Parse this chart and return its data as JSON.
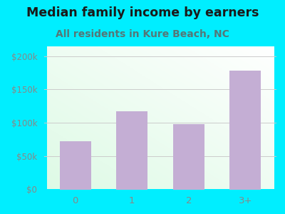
{
  "title": "Median family income by earners",
  "subtitle": "All residents in Kure Beach, NC",
  "categories": [
    "0",
    "1",
    "2",
    "3+"
  ],
  "values": [
    72000,
    117000,
    98000,
    178000
  ],
  "bar_color": "#c4aed4",
  "title_fontsize": 12.5,
  "subtitle_fontsize": 10,
  "ylabel_ticks": [
    0,
    50000,
    100000,
    150000,
    200000
  ],
  "ylabel_labels": [
    "$0",
    "$50k",
    "$100k",
    "$150k",
    "$200k"
  ],
  "ylim": [
    0,
    215000
  ],
  "background_outer": "#00eeff",
  "title_color": "#1a1a1a",
  "subtitle_color": "#557777",
  "tick_color": "#888888",
  "grid_color": "#cccccc"
}
